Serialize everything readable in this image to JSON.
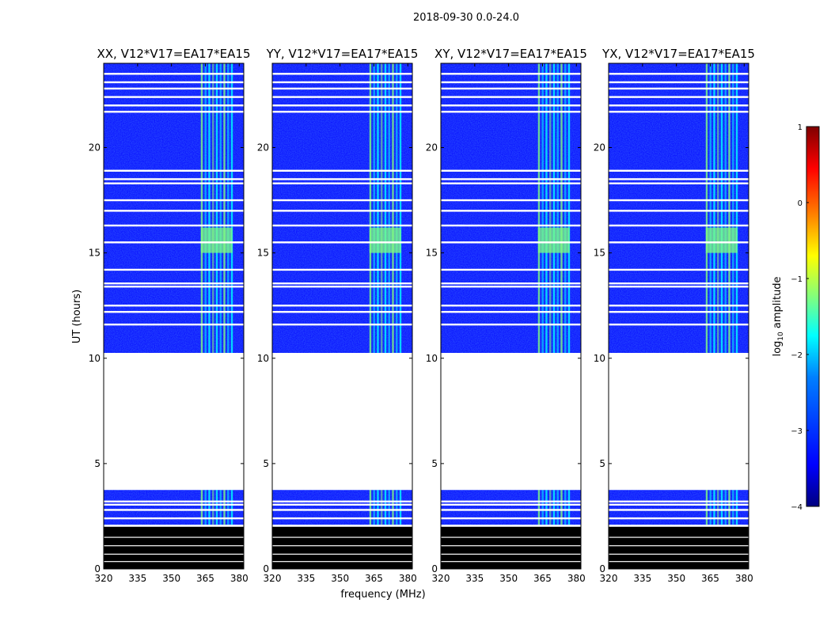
{
  "suptitle": "2018-09-30 0.0-24.0",
  "ylabel": "UT (hours)",
  "xlabel": "frequency (MHz)",
  "colorbar_label_prefix": "log",
  "colorbar_label_sub": "10",
  "colorbar_label_suffix": " amplitude",
  "colors": {
    "background": "#ffffff",
    "flagged_black": "#000000",
    "jet": [
      "#00007f",
      "#0000ff",
      "#007fff",
      "#00ffff",
      "#7fff7f",
      "#ffff00",
      "#ff7f00",
      "#ff0000",
      "#7f0000"
    ]
  },
  "chart_data": {
    "type": "heatmap",
    "panels": [
      {
        "title": "XX, V12*V17=EA17*EA15",
        "correlation": "XX"
      },
      {
        "title": "YY, V12*V17=EA17*EA15",
        "correlation": "YY"
      },
      {
        "title": "XY, V12*V17=EA17*EA15",
        "correlation": "XY"
      },
      {
        "title": "YX, V12*V17=EA17*EA15",
        "correlation": "YX"
      }
    ],
    "x_range": [
      320,
      382
    ],
    "x_ticks": [
      320,
      335,
      350,
      365,
      380
    ],
    "y_range": [
      0,
      24
    ],
    "y_ticks": [
      0,
      5,
      10,
      15,
      20
    ],
    "colorbar": {
      "range": [
        -4,
        1
      ],
      "ticks": [
        -4,
        -3,
        -2,
        -1,
        0,
        1
      ],
      "tick_labels": [
        "−4",
        "−3",
        "−2",
        "−1",
        "0",
        "1"
      ],
      "colormap": "jet"
    },
    "data_regions_ut": [
      [
        2.1,
        3.75
      ],
      [
        10.25,
        24.0
      ]
    ],
    "blank_region_ut": [
      3.75,
      10.25
    ],
    "flagged_black_ut": [
      0.0,
      2.0
    ],
    "rfi_band_mhz": [
      363,
      378
    ],
    "bright_rfi_ut": [
      [
        15.0,
        16.2
      ]
    ],
    "blank_row_gaps_ut": [
      13.4,
      13.55,
      12.2,
      12.5,
      11.6,
      14.2,
      15.5,
      16.3,
      17.0,
      17.5,
      18.3,
      18.5,
      18.9,
      21.7,
      22.0,
      22.4,
      22.8,
      23.1,
      23.5,
      2.4,
      2.8,
      3.05,
      3.2
    ]
  }
}
